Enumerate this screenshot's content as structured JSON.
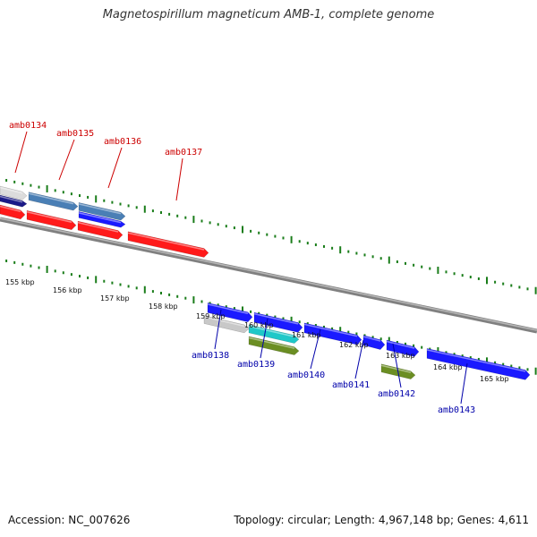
{
  "title": "Magnetospirillum magneticum AMB-1, complete genome",
  "footer": {
    "accession": "Accession: NC_007626",
    "summary": "Topology: circular; Length: 4,967,148 bp; Genes: 4,611"
  },
  "colors": {
    "ruler": "#1a7d1a",
    "backbone": "#808080",
    "upper_label": "#cc0000",
    "lower_label": "#0000aa",
    "forward_cds": "#ff1a1a",
    "reverse_cds": "#1a1aff"
  },
  "kbp_ticks": [
    "155 kbp",
    "156 kbp",
    "157 kbp",
    "158 kbp",
    "159 kbp",
    "160 kbp",
    "161 kbp",
    "162 kbp",
    "163 kbp",
    "164 kbp",
    "165 kbp"
  ],
  "features_upper": [
    {
      "name": "amb0134",
      "bars": [
        {
          "track": "a",
          "s": 0,
          "e": 30,
          "color": "#dcdcdc"
        },
        {
          "track": "b",
          "s": 0,
          "e": 30,
          "color": "#1a1a88"
        },
        {
          "track": "c",
          "s": 0,
          "e": 28,
          "color": "#ff1a1a"
        }
      ]
    },
    {
      "name": "amb0135",
      "bars": [
        {
          "track": "a",
          "s": 32,
          "e": 87,
          "color": "#4a7fb5"
        },
        {
          "track": "c",
          "s": 30,
          "e": 85,
          "color": "#ff1a1a"
        }
      ]
    },
    {
      "name": "amb0136",
      "bars": [
        {
          "track": "a",
          "s": 88,
          "e": 140,
          "color": "#4a7fb5"
        },
        {
          "track": "b",
          "s": 88,
          "e": 140,
          "color": "#1a1aff"
        },
        {
          "track": "c",
          "s": 87,
          "e": 137,
          "color": "#ff1a1a"
        }
      ]
    },
    {
      "name": "amb0137",
      "bars": [
        {
          "track": "c",
          "s": 143,
          "e": 233,
          "color": "#ff1a1a"
        }
      ]
    }
  ],
  "features_lower": [
    {
      "name": "amb0138",
      "bars": [
        {
          "track": "d",
          "s": 232,
          "e": 282,
          "color": "#1a1aff"
        },
        {
          "track": "e",
          "s": 228,
          "e": 278,
          "color": "#c8c8c8"
        }
      ]
    },
    {
      "name": "amb0139",
      "bars": [
        {
          "track": "d",
          "s": 284,
          "e": 338,
          "color": "#1a1aff"
        },
        {
          "track": "e",
          "s": 278,
          "e": 334,
          "color": "#1fc8c8"
        },
        {
          "track": "f",
          "s": 278,
          "e": 334,
          "color": "#6b8e23"
        }
      ]
    },
    {
      "name": "amb0140",
      "bars": [
        {
          "track": "d",
          "s": 340,
          "e": 404,
          "color": "#1a1aff"
        }
      ]
    },
    {
      "name": "amb0141",
      "bars": [
        {
          "track": "d",
          "s": 406,
          "e": 430,
          "color": "#1a1aff"
        }
      ]
    },
    {
      "name": "amb0142",
      "bars": [
        {
          "track": "d",
          "s": 432,
          "e": 468,
          "color": "#1a1aff"
        },
        {
          "track": "f",
          "s": 426,
          "e": 464,
          "color": "#6b8e23"
        }
      ]
    },
    {
      "name": "amb0143",
      "bars": [
        {
          "track": "d",
          "s": 477,
          "e": 592,
          "color": "#1a1aff"
        }
      ]
    }
  ]
}
